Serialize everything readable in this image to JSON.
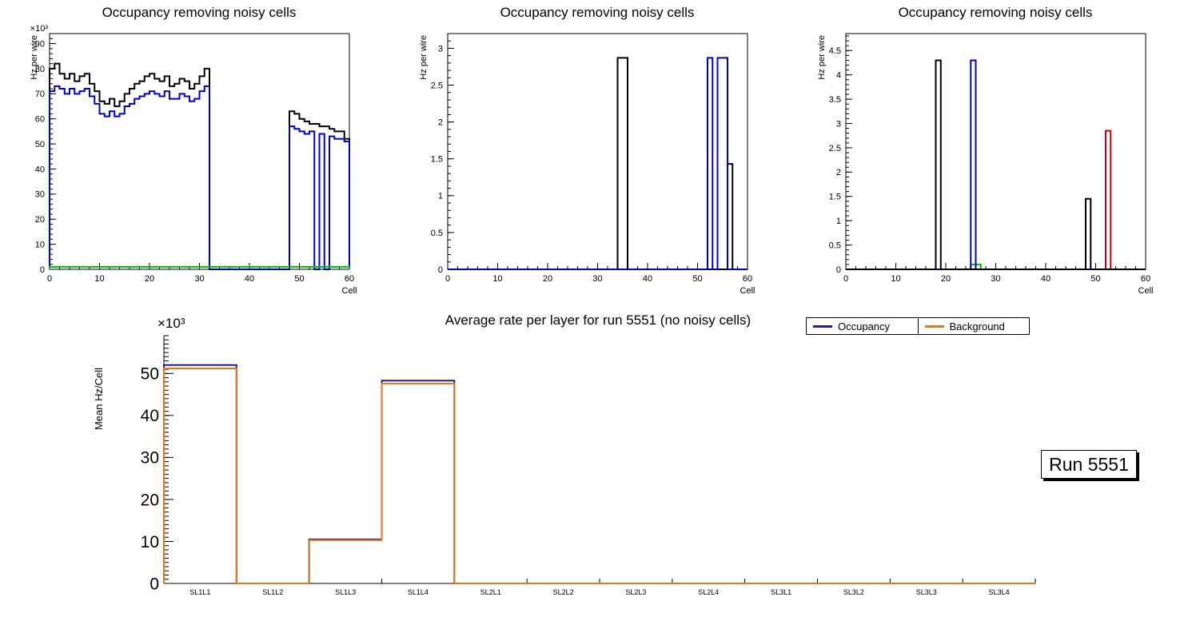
{
  "run_box": {
    "label": "Run 5551"
  },
  "chart_data": [
    {
      "type": "line",
      "title": "Occupancy removing noisy cells",
      "xlabel": "Cell",
      "ylabel": "Hz per wire",
      "y_scale": "×10³",
      "xlim": [
        0,
        60
      ],
      "ylim": [
        0,
        94
      ],
      "xticks": [
        0,
        10,
        20,
        30,
        40,
        50,
        60
      ],
      "yticks": [
        0,
        10,
        20,
        30,
        40,
        50,
        60,
        70,
        80,
        90
      ],
      "grid": false,
      "series": [
        {
          "name": "black",
          "color": "#000000",
          "values": [
            80,
            82,
            78,
            76,
            78,
            75,
            77,
            78,
            74,
            71,
            67,
            66,
            68,
            65,
            67,
            70,
            72,
            74,
            75,
            77,
            78,
            76,
            75,
            77,
            73,
            74,
            76,
            75,
            72,
            74,
            77,
            80,
            0,
            0,
            0,
            0,
            0,
            0,
            0,
            0,
            0,
            0,
            0,
            0,
            0,
            0,
            0,
            0,
            63,
            62,
            60,
            59,
            58,
            58,
            57,
            57,
            56,
            55,
            55,
            52
          ]
        },
        {
          "name": "blue",
          "color": "#0000cd",
          "values": [
            71,
            73,
            72,
            70,
            72,
            70,
            71,
            72,
            69,
            66,
            62,
            61,
            63,
            61,
            62,
            65,
            66,
            68,
            69,
            70,
            71,
            70,
            69,
            71,
            68,
            68,
            70,
            69,
            67,
            68,
            71,
            73,
            0,
            0,
            0,
            0,
            0,
            0,
            0,
            0,
            0,
            0,
            0,
            0,
            0,
            0,
            0,
            0,
            57,
            56,
            55,
            54,
            55,
            0,
            54,
            0,
            53,
            52,
            52,
            51
          ]
        },
        {
          "name": "green",
          "color": "#00bd00",
          "values": [
            1,
            1,
            1,
            1,
            1,
            1,
            1,
            1,
            1,
            1,
            1,
            1,
            1,
            1,
            1,
            1,
            1,
            1,
            1,
            1,
            1,
            1,
            1,
            1,
            1,
            1,
            1,
            1,
            1,
            1,
            1,
            1,
            1,
            1,
            1,
            1,
            1,
            1,
            1,
            1,
            1,
            1,
            1,
            1,
            1,
            1,
            1,
            1,
            1,
            1,
            1,
            1,
            1,
            1,
            1,
            1,
            1,
            1,
            1,
            1
          ]
        }
      ]
    },
    {
      "type": "line",
      "title": "Occupancy removing noisy cells",
      "xlabel": "Cell",
      "ylabel": "Hz per wire",
      "xlim": [
        0,
        60
      ],
      "ylim": [
        0,
        3.2
      ],
      "xticks": [
        0,
        10,
        20,
        30,
        40,
        50,
        60
      ],
      "yticks": [
        0,
        0.5,
        1,
        1.5,
        2,
        2.5,
        3
      ],
      "grid": false,
      "series": [
        {
          "name": "black",
          "color": "#000000",
          "values": [
            0,
            0,
            0,
            0,
            0,
            0,
            0,
            0,
            0,
            0,
            0,
            0,
            0,
            0,
            0,
            0,
            0,
            0,
            0,
            0,
            0,
            0,
            0,
            0,
            0,
            0,
            0,
            0,
            0,
            0,
            0,
            0,
            0,
            0,
            2.87,
            2.87,
            0,
            0,
            0,
            0,
            0,
            0,
            0,
            0,
            0,
            0,
            0,
            0,
            0,
            0,
            0,
            0,
            0,
            0,
            0,
            0,
            1.43,
            0,
            0,
            0
          ]
        },
        {
          "name": "blue",
          "color": "#0000cd",
          "values": [
            0,
            0,
            0,
            0,
            0,
            0,
            0,
            0,
            0,
            0,
            0,
            0,
            0,
            0,
            0,
            0,
            0,
            0,
            0,
            0,
            0,
            0,
            0,
            0,
            0,
            0,
            0,
            0,
            0,
            0,
            0,
            0,
            0,
            0,
            0,
            0,
            0,
            0,
            0,
            0,
            0,
            0,
            0,
            0,
            0,
            0,
            0,
            0,
            0,
            0,
            0,
            0,
            2.87,
            0,
            2.87,
            2.87,
            0,
            0,
            0,
            0
          ]
        }
      ]
    },
    {
      "type": "line",
      "title": "Occupancy removing noisy cells",
      "xlabel": "Cell",
      "ylabel": "Hz per wire",
      "xlim": [
        0,
        60
      ],
      "ylim": [
        0,
        4.85
      ],
      "xticks": [
        0,
        10,
        20,
        30,
        40,
        50,
        60
      ],
      "yticks": [
        0,
        0.5,
        1,
        1.5,
        2,
        2.5,
        3,
        3.5,
        4,
        4.5
      ],
      "grid": false,
      "series": [
        {
          "name": "red",
          "color": "#cc0000",
          "values": [
            0,
            0,
            0,
            0,
            0,
            0,
            0,
            0,
            0,
            0,
            0,
            0,
            0,
            0,
            0,
            0,
            0,
            0,
            0,
            0,
            0,
            0,
            0,
            0,
            0,
            0,
            0,
            0,
            0,
            0,
            0,
            0,
            0,
            0,
            0,
            0,
            0,
            0,
            0,
            0,
            0,
            0,
            0,
            0,
            0,
            0,
            0,
            0,
            0,
            0,
            0,
            0,
            2.85,
            0,
            0,
            0,
            0,
            0,
            0,
            0
          ]
        },
        {
          "name": "green",
          "color": "#00bd00",
          "values": [
            0,
            0,
            0,
            0,
            0,
            0,
            0,
            0,
            0,
            0,
            0,
            0,
            0,
            0,
            0,
            0,
            0,
            0,
            0,
            0,
            0,
            0,
            0,
            0,
            0,
            0.1,
            0.1,
            0,
            0,
            0,
            0,
            0,
            0,
            0,
            0,
            0,
            0,
            0,
            0,
            0,
            0,
            0,
            0,
            0,
            0,
            0,
            0,
            0,
            0,
            0,
            0,
            0,
            0,
            0,
            0,
            0,
            0,
            0,
            0,
            0
          ]
        },
        {
          "name": "blue",
          "color": "#0000cd",
          "values": [
            0,
            0,
            0,
            0,
            0,
            0,
            0,
            0,
            0,
            0,
            0,
            0,
            0,
            0,
            0,
            0,
            0,
            0,
            0,
            0,
            0,
            0,
            0,
            0,
            0,
            4.3,
            0,
            0,
            0,
            0,
            0,
            0,
            0,
            0,
            0,
            0,
            0,
            0,
            0,
            0,
            0,
            0,
            0,
            0,
            0,
            0,
            0,
            0,
            0,
            0,
            0,
            0,
            0,
            0,
            0,
            0,
            0,
            0,
            0,
            0
          ]
        },
        {
          "name": "black",
          "color": "#000000",
          "values": [
            0,
            0,
            0,
            0,
            0,
            0,
            0,
            0,
            0,
            0,
            0,
            0,
            0,
            0,
            0,
            0,
            0,
            0,
            4.3,
            0,
            0,
            0,
            0,
            0,
            0,
            0,
            0,
            0,
            0,
            0,
            0,
            0,
            0,
            0,
            0,
            0,
            0,
            0,
            0,
            0,
            0,
            0,
            0,
            0,
            0,
            0,
            0,
            0,
            1.45,
            0,
            0,
            0,
            0,
            0,
            0,
            0,
            0,
            0,
            0,
            0
          ]
        }
      ]
    },
    {
      "type": "step",
      "title": "Average rate per layer for run 5551 (no noisy cells)",
      "xlabel": "",
      "ylabel": "Mean Hz/Cell",
      "y_scale": "×10³",
      "ylim": [
        0,
        59
      ],
      "yticks": [
        0,
        10,
        20,
        30,
        40,
        50
      ],
      "grid": false,
      "legend_position": "top-right",
      "categories": [
        "SL1L1",
        "SL1L2",
        "SL1L3",
        "SL1L4",
        "SL2L1",
        "SL2L2",
        "SL2L3",
        "SL2L4",
        "SL3L1",
        "SL3L2",
        "SL3L3",
        "SL3L4"
      ],
      "series": [
        {
          "name": "Occupancy",
          "color": "#221c8e",
          "values": [
            52,
            0,
            10.5,
            48.3,
            0,
            0,
            0,
            0,
            0,
            0,
            0,
            0
          ]
        },
        {
          "name": "Background",
          "color": "#e2781e",
          "values": [
            51.2,
            0,
            10.3,
            47.6,
            0,
            0,
            0,
            0,
            0,
            0,
            0,
            0
          ]
        }
      ]
    }
  ]
}
